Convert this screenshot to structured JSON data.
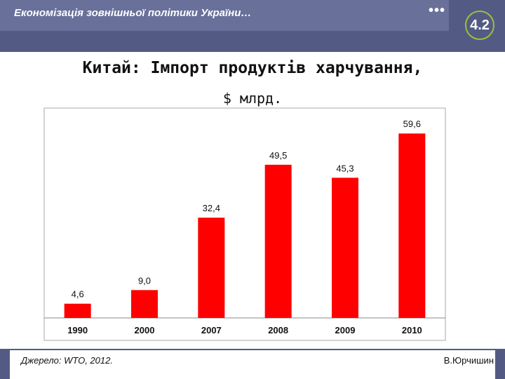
{
  "header": {
    "title": "Економізація зовнішньої політики України…",
    "dots": "•••",
    "badge": "4.2"
  },
  "slide": {
    "title": "Китай: Імпорт продуктів харчування,",
    "subtitle": "$ млрд."
  },
  "footer": {
    "source": "Джерело: WTO, 2012.",
    "author": "В.Юрчишин"
  },
  "colors": {
    "bar": "#ff0000",
    "header": "#535b84",
    "accent": "#9dbe3c"
  },
  "chart_data": {
    "type": "bar",
    "categories": [
      "1990",
      "2000",
      "2007",
      "2008",
      "2009",
      "2010"
    ],
    "values": [
      4.6,
      9.0,
      32.4,
      49.5,
      45.3,
      59.6
    ],
    "value_labels": [
      "4,6",
      "9,0",
      "32,4",
      "49,5",
      "45,3",
      "59,6"
    ],
    "ylim": [
      0,
      66
    ],
    "grid": false,
    "legend": "none"
  }
}
